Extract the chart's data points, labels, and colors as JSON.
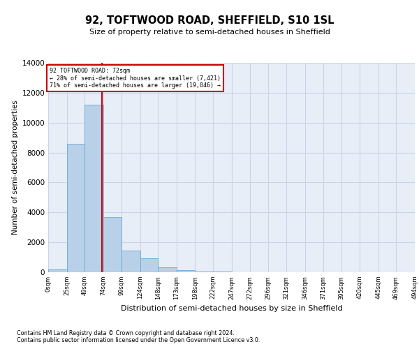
{
  "title": "92, TOFTWOOD ROAD, SHEFFIELD, S10 1SL",
  "subtitle": "Size of property relative to semi-detached houses in Sheffield",
  "xlabel": "Distribution of semi-detached houses by size in Sheffield",
  "ylabel": "Number of semi-detached properties",
  "footnote1": "Contains HM Land Registry data © Crown copyright and database right 2024.",
  "footnote2": "Contains public sector information licensed under the Open Government Licence v3.0.",
  "property_size": 72,
  "annotation_line1": "92 TOFTWOOD ROAD: 72sqm",
  "annotation_line2": "← 28% of semi-detached houses are smaller (7,421)",
  "annotation_line3": "71% of semi-detached houses are larger (19,046) →",
  "bar_color": "#b8d0e8",
  "bar_edge_color": "#6aaad4",
  "grid_color": "#c8d4e8",
  "vline_color": "#cc0000",
  "annotation_box_color": "#cc0000",
  "background_color": "#e8eef8",
  "bin_edges": [
    0,
    25,
    49,
    74,
    99,
    124,
    148,
    173,
    198,
    222,
    247,
    272,
    296,
    321,
    346,
    371,
    395,
    420,
    445,
    469,
    494
  ],
  "bin_labels": [
    "0sqm",
    "25sqm",
    "49sqm",
    "74sqm",
    "99sqm",
    "124sqm",
    "148sqm",
    "173sqm",
    "198sqm",
    "222sqm",
    "247sqm",
    "272sqm",
    "296sqm",
    "321sqm",
    "346sqm",
    "371sqm",
    "395sqm",
    "420sqm",
    "445sqm",
    "469sqm",
    "494sqm"
  ],
  "counts": [
    200,
    8600,
    11200,
    3700,
    1450,
    950,
    350,
    150,
    70,
    30,
    10,
    5,
    0,
    0,
    0,
    0,
    0,
    0,
    0,
    0
  ],
  "ylim": [
    0,
    14000
  ],
  "yticks": [
    0,
    2000,
    4000,
    6000,
    8000,
    10000,
    12000,
    14000
  ]
}
